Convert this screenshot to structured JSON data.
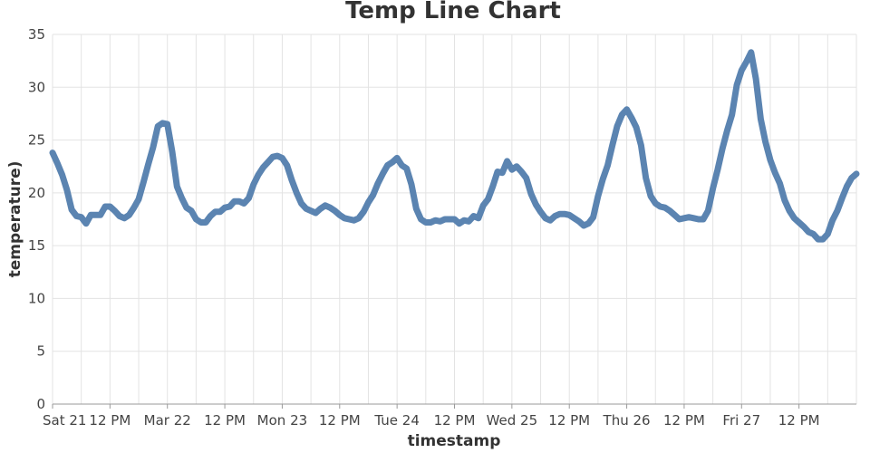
{
  "chart_data": {
    "type": "line",
    "title": "Temp Line Chart",
    "xlabel": "timestamp",
    "ylabel": "temperature)",
    "ylim": [
      0,
      35
    ],
    "y_ticks": [
      0,
      5,
      10,
      15,
      20,
      25,
      30,
      35
    ],
    "x_range_hours": [
      0,
      168
    ],
    "x_ticks": [
      {
        "hour": 0,
        "label": "Sat 21"
      },
      {
        "hour": 12,
        "label": "12 PM"
      },
      {
        "hour": 24,
        "label": "Mar 22"
      },
      {
        "hour": 36,
        "label": "12 PM"
      },
      {
        "hour": 48,
        "label": "Mon 23"
      },
      {
        "hour": 60,
        "label": "12 PM"
      },
      {
        "hour": 72,
        "label": "Tue 24"
      },
      {
        "hour": 84,
        "label": "12 PM"
      },
      {
        "hour": 96,
        "label": "Wed 25"
      },
      {
        "hour": 108,
        "label": "12 PM"
      },
      {
        "hour": 120,
        "label": "Thu 26"
      },
      {
        "hour": 132,
        "label": "12 PM"
      },
      {
        "hour": 144,
        "label": "Fri 27"
      },
      {
        "hour": 156,
        "label": "12 PM"
      }
    ],
    "grid": true,
    "line_color": "#5b84b1",
    "points": [
      [
        0,
        23.8
      ],
      [
        1,
        22.8
      ],
      [
        2,
        21.7
      ],
      [
        3,
        20.3
      ],
      [
        4,
        18.4
      ],
      [
        5,
        17.8
      ],
      [
        6,
        17.7
      ],
      [
        7,
        17.1
      ],
      [
        8,
        17.9
      ],
      [
        9,
        17.9
      ],
      [
        10,
        17.9
      ],
      [
        11,
        18.7
      ],
      [
        12,
        18.7
      ],
      [
        13,
        18.3
      ],
      [
        14,
        17.8
      ],
      [
        15,
        17.6
      ],
      [
        16,
        17.9
      ],
      [
        17,
        18.6
      ],
      [
        18,
        19.4
      ],
      [
        19,
        21.0
      ],
      [
        20,
        22.7
      ],
      [
        21,
        24.3
      ],
      [
        22,
        26.3
      ],
      [
        23,
        26.6
      ],
      [
        24,
        26.5
      ],
      [
        25,
        23.9
      ],
      [
        26,
        20.6
      ],
      [
        27,
        19.5
      ],
      [
        28,
        18.6
      ],
      [
        29,
        18.3
      ],
      [
        30,
        17.5
      ],
      [
        31,
        17.2
      ],
      [
        32,
        17.2
      ],
      [
        33,
        17.8
      ],
      [
        34,
        18.2
      ],
      [
        35,
        18.2
      ],
      [
        36,
        18.6
      ],
      [
        37,
        18.7
      ],
      [
        38,
        19.2
      ],
      [
        39,
        19.2
      ],
      [
        40,
        19.0
      ],
      [
        41,
        19.5
      ],
      [
        42,
        20.8
      ],
      [
        43,
        21.7
      ],
      [
        44,
        22.4
      ],
      [
        45,
        22.9
      ],
      [
        46,
        23.4
      ],
      [
        47,
        23.5
      ],
      [
        48,
        23.3
      ],
      [
        49,
        22.6
      ],
      [
        50,
        21.2
      ],
      [
        51,
        20.0
      ],
      [
        52,
        19.0
      ],
      [
        53,
        18.5
      ],
      [
        54,
        18.3
      ],
      [
        55,
        18.1
      ],
      [
        56,
        18.5
      ],
      [
        57,
        18.8
      ],
      [
        58,
        18.6
      ],
      [
        59,
        18.3
      ],
      [
        60,
        17.9
      ],
      [
        61,
        17.6
      ],
      [
        62,
        17.5
      ],
      [
        63,
        17.4
      ],
      [
        64,
        17.6
      ],
      [
        65,
        18.2
      ],
      [
        66,
        19.1
      ],
      [
        67,
        19.8
      ],
      [
        68,
        20.9
      ],
      [
        69,
        21.8
      ],
      [
        70,
        22.6
      ],
      [
        71,
        22.9
      ],
      [
        72,
        23.3
      ],
      [
        73,
        22.6
      ],
      [
        74,
        22.3
      ],
      [
        75,
        20.8
      ],
      [
        76,
        18.5
      ],
      [
        77,
        17.5
      ],
      [
        78,
        17.2
      ],
      [
        79,
        17.2
      ],
      [
        80,
        17.4
      ],
      [
        81,
        17.3
      ],
      [
        82,
        17.5
      ],
      [
        83,
        17.5
      ],
      [
        84,
        17.5
      ],
      [
        85,
        17.1
      ],
      [
        86,
        17.4
      ],
      [
        87,
        17.3
      ],
      [
        88,
        17.8
      ],
      [
        89,
        17.6
      ],
      [
        90,
        18.8
      ],
      [
        91,
        19.4
      ],
      [
        92,
        20.6
      ],
      [
        93,
        22.0
      ],
      [
        94,
        21.9
      ],
      [
        95,
        23.0
      ],
      [
        96,
        22.2
      ],
      [
        97,
        22.5
      ],
      [
        98,
        22.0
      ],
      [
        99,
        21.4
      ],
      [
        100,
        19.9
      ],
      [
        101,
        18.9
      ],
      [
        102,
        18.2
      ],
      [
        103,
        17.6
      ],
      [
        104,
        17.4
      ],
      [
        105,
        17.8
      ],
      [
        106,
        18.0
      ],
      [
        107,
        18.0
      ],
      [
        108,
        17.9
      ],
      [
        109,
        17.6
      ],
      [
        110,
        17.3
      ],
      [
        111,
        16.9
      ],
      [
        112,
        17.1
      ],
      [
        113,
        17.7
      ],
      [
        114,
        19.7
      ],
      [
        115,
        21.3
      ],
      [
        116,
        22.6
      ],
      [
        117,
        24.5
      ],
      [
        118,
        26.3
      ],
      [
        119,
        27.4
      ],
      [
        120,
        27.9
      ],
      [
        121,
        27.1
      ],
      [
        122,
        26.2
      ],
      [
        123,
        24.5
      ],
      [
        124,
        21.4
      ],
      [
        125,
        19.7
      ],
      [
        126,
        19.0
      ],
      [
        127,
        18.7
      ],
      [
        128,
        18.6
      ],
      [
        129,
        18.3
      ],
      [
        130,
        17.9
      ],
      [
        131,
        17.5
      ],
      [
        132,
        17.6
      ],
      [
        133,
        17.7
      ],
      [
        134,
        17.6
      ],
      [
        135,
        17.5
      ],
      [
        136,
        17.5
      ],
      [
        137,
        18.3
      ],
      [
        138,
        20.4
      ],
      [
        139,
        22.2
      ],
      [
        140,
        24.2
      ],
      [
        141,
        25.9
      ],
      [
        142,
        27.4
      ],
      [
        143,
        30.2
      ],
      [
        144,
        31.6
      ],
      [
        145,
        32.4
      ],
      [
        146,
        33.3
      ],
      [
        147,
        30.8
      ],
      [
        148,
        27.0
      ],
      [
        149,
        24.8
      ],
      [
        150,
        23.1
      ],
      [
        151,
        21.9
      ],
      [
        152,
        20.9
      ],
      [
        153,
        19.3
      ],
      [
        154,
        18.3
      ],
      [
        155,
        17.6
      ],
      [
        156,
        17.2
      ],
      [
        157,
        16.8
      ],
      [
        158,
        16.3
      ],
      [
        159,
        16.1
      ],
      [
        160,
        15.6
      ],
      [
        161,
        15.6
      ],
      [
        162,
        16.1
      ],
      [
        163,
        17.4
      ],
      [
        164,
        18.3
      ],
      [
        165,
        19.5
      ],
      [
        166,
        20.6
      ],
      [
        167,
        21.4
      ],
      [
        168,
        21.8
      ]
    ]
  }
}
